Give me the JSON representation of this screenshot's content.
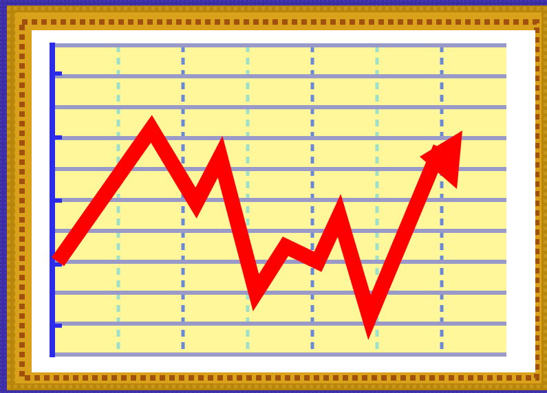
{
  "icon": {
    "name": "line-chart-icon",
    "colors": {
      "background": "#3a2fa0",
      "frame_outer": "#b8860b",
      "frame_inner": "#d9a21a",
      "frame_shadow": "#8a5a08",
      "mat": "#ffffff",
      "plot_fill": "#fff799",
      "major_grid": "#9a9ac8",
      "minor_grid": "#9fe0c8",
      "axis": "#2b2be8",
      "trend": "#ff0000"
    },
    "grid": {
      "rows": 10,
      "columns": 7
    },
    "trend_values": [
      3.0,
      7.3,
      4.9,
      6.4,
      2.0,
      3.5,
      3.0,
      4.5,
      1.2,
      6.7
    ],
    "trend_direction": "up"
  }
}
